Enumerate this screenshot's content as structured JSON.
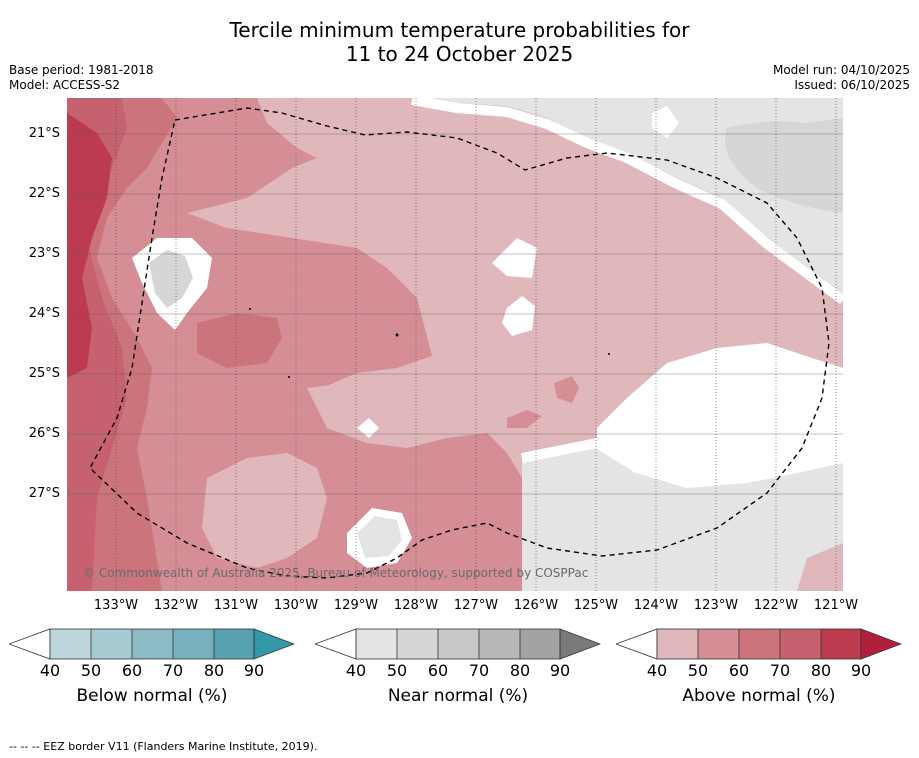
{
  "title": {
    "line1": "Tercile minimum temperature probabilities for",
    "line2": "11 to 24 October 2025"
  },
  "meta_left": {
    "base_period": "Base period: 1981-2018",
    "model": "Model: ACCESS-S2"
  },
  "meta_right": {
    "model_run": "Model run: 04/10/2025",
    "issued": "Issued: 06/10/2025"
  },
  "copyright": "© Commonwealth of Australia 2025, Bureau of Meteorology, supported by COSPPac",
  "footer": "-- -- -- EEZ border V11 (Flanders Marine Institute, 2019).",
  "colors": {
    "above_40": "#e0b8bc",
    "above_50": "#d58e95",
    "above_60": "#cc747c",
    "above_70": "#c66270",
    "above_80": "#bd3b4e",
    "above_90": "#b0203c",
    "near_40": "#e4e4e4",
    "near_50": "#d6d6d6",
    "near_60": "#c8c8c8",
    "near_70": "#b8b8b8",
    "near_80": "#a3a3a3",
    "near_90": "#7a7a7a",
    "below_40": "#bdd6dc",
    "below_50": "#a6cad1",
    "below_60": "#8dbbc5",
    "below_70": "#78b0bd",
    "below_80": "#56a2b1",
    "below_90": "#3598a8"
  },
  "chart_data": {
    "type": "heatmap",
    "title": "Tercile minimum temperature probabilities for 11 to 24 October 2025",
    "x_axis": {
      "ticks": [
        "133°W",
        "132°W",
        "131°W",
        "130°W",
        "129°W",
        "128°W",
        "127°W",
        "126°W",
        "125°W",
        "124°W",
        "123°W",
        "122°W",
        "121°W"
      ],
      "tick_values": [
        -133,
        -132,
        -131,
        -130,
        -129,
        -128,
        -127,
        -126,
        -125,
        -124,
        -123,
        -122,
        -121
      ],
      "range": [
        -133.85,
        -120.95
      ]
    },
    "y_axis": {
      "ticks": [
        "21°S",
        "22°S",
        "23°S",
        "24°S",
        "25°S",
        "26°S",
        "27°S"
      ],
      "tick_values": [
        -21,
        -22,
        -23,
        -24,
        -25,
        -26,
        -27
      ],
      "range": [
        -28.6,
        -20.4
      ]
    },
    "regions": [
      {
        "category": "above",
        "level": 40,
        "description": "broad background of the western and central area"
      },
      {
        "category": "above",
        "level": 50,
        "description": "band across western half"
      },
      {
        "category": "above",
        "level": 60,
        "description": "western edge strip and patch near 131°W 24.5°S"
      },
      {
        "category": "above",
        "level": 70,
        "description": "western edge"
      },
      {
        "category": "above",
        "level": 80,
        "description": "far western edge near 133.8°W 21–25°S"
      },
      {
        "category": "near",
        "level": 40,
        "description": "north-east and south-east corners"
      },
      {
        "category": "near",
        "level": 50,
        "description": "small areas near 132°W 23.5°S and north-east corner"
      }
    ],
    "eez_border": "dashed line"
  },
  "colorbars": [
    {
      "name": "Below normal (%)",
      "ticks": [
        "40",
        "50",
        "60",
        "70",
        "80",
        "90"
      ]
    },
    {
      "name": "Near normal (%)",
      "ticks": [
        "40",
        "50",
        "60",
        "70",
        "80",
        "90"
      ]
    },
    {
      "name": "Above normal (%)",
      "ticks": [
        "40",
        "50",
        "60",
        "70",
        "80",
        "90"
      ]
    }
  ]
}
